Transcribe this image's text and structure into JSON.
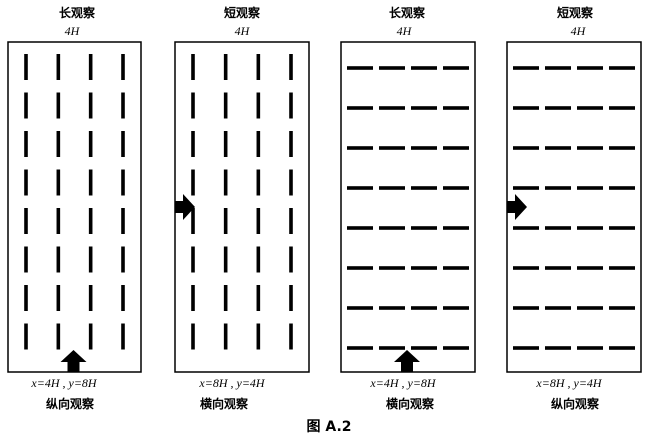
{
  "figure_caption": "图 A.2",
  "panels": [
    {
      "top_label": "长观察",
      "top_dim": "4H",
      "orientation": "vertical",
      "arrow": "bottom",
      "coord_text": "x=4H , y=8H",
      "bottom_label": "纵向观察"
    },
    {
      "top_label": "短观察",
      "top_dim": "4H",
      "orientation": "vertical",
      "arrow": "left",
      "coord_text": "x=8H , y=4H",
      "bottom_label": "横向观察"
    },
    {
      "top_label": "长观察",
      "top_dim": "4H",
      "orientation": "horizontal",
      "arrow": "bottom",
      "coord_text": "x=4H , y=8H",
      "bottom_label": "横向观察"
    },
    {
      "top_label": "短观察",
      "top_dim": "4H",
      "orientation": "horizontal",
      "arrow": "left",
      "coord_text": "x=8H , y=4H",
      "bottom_label": "纵向观察"
    }
  ]
}
